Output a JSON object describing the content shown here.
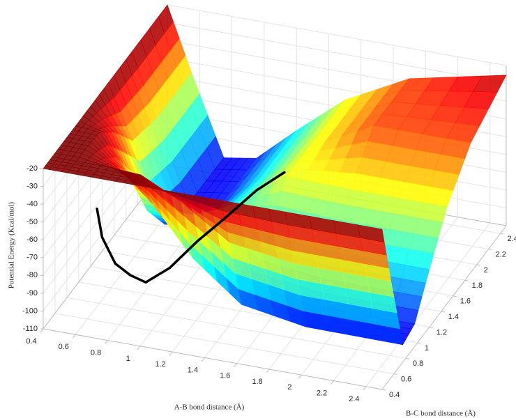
{
  "chart_data": {
    "type": "surface",
    "xlabel": "A-B bond distance (Å)",
    "ylabel": "B-C bond distance (Å)",
    "zlabel": "Potential Energy (Kcal/mol)",
    "x": [
      0.4,
      0.55,
      0.75,
      0.95,
      1.2,
      1.5,
      1.9,
      2.5
    ],
    "y": [
      0.4,
      0.55,
      0.75,
      0.95,
      1.2,
      1.5,
      1.9,
      2.5
    ],
    "z": [
      [
        -20,
        -20,
        -20,
        -20,
        -20,
        -20,
        -20,
        -20
      ],
      [
        -20,
        -20,
        -20,
        -21.2,
        -32.3,
        -50.2,
        -55.4,
        -55.7
      ],
      [
        -20,
        -20,
        -30.4,
        -46.2,
        -72.8,
        -93.8,
        -99.9,
        -100.2
      ],
      [
        -20,
        -21.2,
        -46.2,
        -50.8,
        -73.9,
        -91.8,
        -97.0,
        -97.3
      ],
      [
        -20,
        -32.3,
        -72.8,
        -73.9,
        -65.0,
        -74.7,
        -77.5,
        -77.6
      ],
      [
        -20,
        -50.2,
        -93.8,
        -91.8,
        -74.7,
        -54.8,
        -55.6,
        -55.6
      ],
      [
        -20,
        -55.4,
        -99.9,
        -97.0,
        -77.5,
        -55.6,
        -37.1,
        -37.1
      ],
      [
        -20,
        -55.7,
        -100.2,
        -97.3,
        -77.6,
        -55.6,
        -37.1,
        -25.4
      ]
    ],
    "colormap": "jet",
    "xlim": [
      0.4,
      2.5
    ],
    "ylim": [
      0.4,
      2.5
    ],
    "zlim": [
      -110,
      -20
    ],
    "xticks": [
      0.4,
      0.6,
      0.8,
      1,
      1.2,
      1.4,
      1.6,
      1.8,
      2,
      2.2,
      2.4
    ],
    "yticks": [
      0.4,
      0.6,
      0.8,
      1,
      1.2,
      1.4,
      1.6,
      1.8,
      2,
      2.2,
      2.4
    ],
    "zticks": [
      -110,
      -100,
      -90,
      -80,
      -70,
      -60,
      -50,
      -40,
      -30,
      -20
    ],
    "grid": true,
    "path": {
      "color": "#000000",
      "x": [
        0.55,
        0.6,
        0.7,
        0.8,
        0.9,
        1.0,
        1.1,
        1.2,
        1.3,
        1.4
      ],
      "y": [
        0.9,
        0.85,
        0.8,
        0.78,
        0.77,
        0.9,
        1.1,
        1.3,
        1.55,
        1.75
      ],
      "z": [
        -62,
        -75,
        -86,
        -90,
        -92,
        -88,
        -80,
        -74,
        -68,
        -65
      ]
    }
  }
}
